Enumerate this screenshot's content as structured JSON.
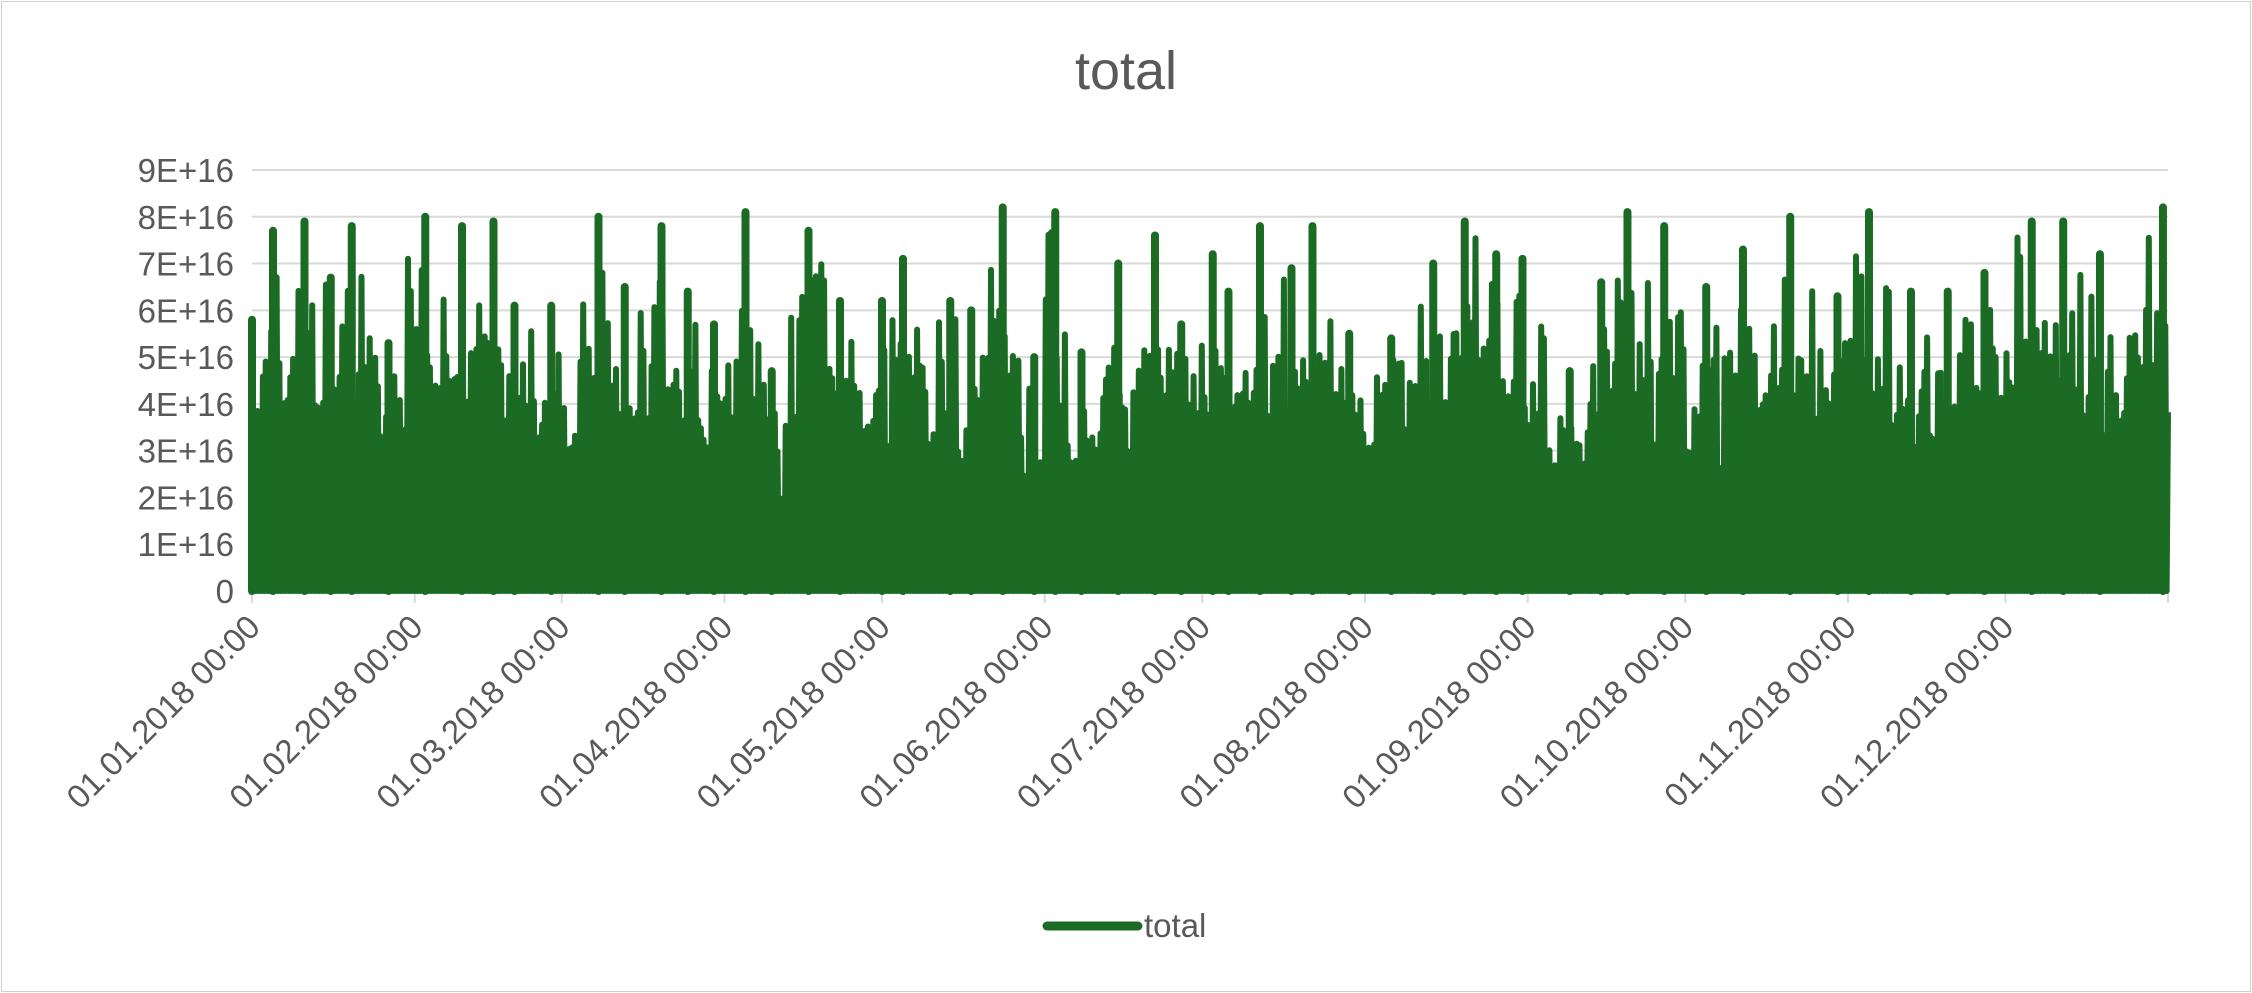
{
  "chart_data": {
    "type": "line",
    "title": "total",
    "xlabel": "",
    "ylabel": "",
    "x_range": [
      "01.01.2018 00:00",
      "31.12.2018 23:00"
    ],
    "x_ticks": [
      "01.01.2018 00:00",
      "01.02.2018 00:00",
      "01.03.2018 00:00",
      "01.04.2018 00:00",
      "01.05.2018 00:00",
      "01.06.2018 00:00",
      "01.07.2018 00:00",
      "01.08.2018 00:00",
      "01.09.2018 00:00",
      "01.10.2018 00:00",
      "01.11.2018 00:00",
      "01.12.2018 00:00"
    ],
    "y_ticks": [
      "0",
      "1E+16",
      "2E+16",
      "3E+16",
      "4E+16",
      "5E+16",
      "6E+16",
      "7E+16",
      "8E+16",
      "9E+16"
    ],
    "ylim": [
      0,
      90000000000000000
    ],
    "grid": true,
    "legend": "bottom",
    "colors": {
      "series": "#1b6b24",
      "grid": "#d9d9d9",
      "text": "#595959"
    },
    "series": [
      {
        "name": "total",
        "x": [
          "01.01.2018",
          "05.01.2018",
          "11.01.2018",
          "16.01.2018",
          "20.01.2018",
          "27.01.2018",
          "03.02.2018",
          "10.02.2018",
          "16.02.2018",
          "20.02.2018",
          "27.02.2018",
          "08.03.2018",
          "13.03.2018",
          "20.03.2018",
          "25.03.2018",
          "30.03.2018",
          "05.04.2018",
          "10.04.2018",
          "17.04.2018",
          "23.04.2018",
          "01.05.2018",
          "05.05.2018",
          "14.05.2018",
          "18.05.2018",
          "24.05.2018",
          "30.05.2018",
          "03.06.2018",
          "08.06.2018",
          "15.06.2018",
          "22.06.2018",
          "27.06.2018",
          "03.07.2018",
          "06.07.2018",
          "12.07.2018",
          "18.07.2018",
          "22.07.2018",
          "29.07.2018",
          "06.08.2018",
          "14.08.2018",
          "20.08.2018",
          "26.08.2018",
          "31.08.2018",
          "09.09.2018",
          "15.09.2018",
          "20.09.2018",
          "27.09.2018",
          "05.10.2018",
          "12.10.2018",
          "21.10.2018",
          "30.10.2018",
          "05.11.2018",
          "13.11.2018",
          "20.11.2018",
          "27.11.2018",
          "06.12.2018",
          "12.12.2018",
          "19.12.2018",
          "31.12.2018"
        ],
        "peaks": [
          58000000000000000,
          77000000000000000,
          79000000000000000,
          67000000000000000,
          78000000000000000,
          53000000000000000,
          80000000000000000,
          78000000000000000,
          79000000000000000,
          61000000000000000,
          61000000000000000,
          80000000000000000,
          65000000000000000,
          78000000000000000,
          64000000000000000,
          57000000000000000,
          81000000000000000,
          47000000000000000,
          77000000000000000,
          62000000000000000,
          62000000000000000,
          71000000000000000,
          62000000000000000,
          60000000000000000,
          82000000000000000,
          50000000000000000,
          81000000000000000,
          51000000000000000,
          70000000000000000,
          76000000000000000,
          57000000000000000,
          72000000000000000,
          64000000000000000,
          78000000000000000,
          69000000000000000,
          78000000000000000,
          55000000000000000,
          54000000000000000,
          70000000000000000,
          79000000000000000,
          72000000000000000,
          71000000000000000,
          47000000000000000,
          66000000000000000,
          81000000000000000,
          78000000000000000,
          65000000000000000,
          73000000000000000,
          80000000000000000,
          63000000000000000,
          81000000000000000,
          64000000000000000,
          64000000000000000,
          68000000000000000,
          79000000000000000,
          79000000000000000,
          72000000000000000,
          82000000000000000
        ],
        "troughs": [
          0,
          0,
          0,
          0,
          0,
          0,
          0,
          0,
          0,
          0,
          0,
          0,
          0,
          0,
          0,
          0,
          0,
          0,
          0,
          0,
          0,
          0,
          0,
          0,
          0,
          0,
          0,
          0,
          0,
          0,
          0,
          0,
          0,
          0,
          0,
          0,
          0,
          0,
          0,
          0,
          0,
          0,
          0,
          0,
          0,
          0,
          0,
          0,
          0,
          0,
          0,
          0,
          0,
          0,
          0,
          0,
          0,
          0
        ]
      }
    ]
  }
}
